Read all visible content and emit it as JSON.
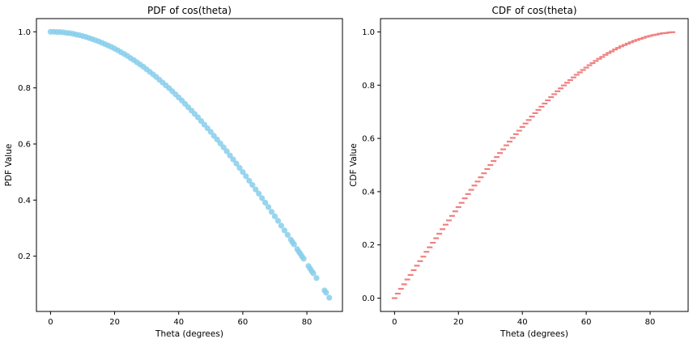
{
  "chart_data": [
    {
      "type": "scatter",
      "title": "PDF of cos(theta)",
      "xlabel": "Theta (degrees)",
      "ylabel": "PDF Value",
      "function": "cos(theta)",
      "xlim": [
        -4.4,
        91.1
      ],
      "ylim": [
        0.003,
        1.047
      ],
      "xticks": [
        0,
        20,
        40,
        60,
        80
      ],
      "yticks": [
        0.2,
        0.4,
        0.6,
        0.8,
        1.0
      ],
      "xtick_labels": [
        "0",
        "20",
        "40",
        "60",
        "80"
      ],
      "ytick_labels": [
        "0.2",
        "0.4",
        "0.6",
        "0.8",
        "1.0"
      ],
      "marker": "circle",
      "color": "#87CEEB",
      "grid": false,
      "points": [
        [
          0.0,
          1.0
        ],
        [
          1.0,
          1.0
        ],
        [
          2.0,
          0.999
        ],
        [
          3.0,
          0.999
        ],
        [
          4.0,
          0.998
        ],
        [
          5.0,
          0.996
        ],
        [
          6.0,
          0.995
        ],
        [
          7.0,
          0.993
        ],
        [
          8.0,
          0.99
        ],
        [
          9.0,
          0.988
        ],
        [
          10.0,
          0.985
        ],
        [
          11.0,
          0.982
        ],
        [
          12.0,
          0.978
        ],
        [
          13.0,
          0.974
        ],
        [
          14.0,
          0.97
        ],
        [
          15.0,
          0.966
        ],
        [
          16.0,
          0.961
        ],
        [
          17.0,
          0.956
        ],
        [
          18.0,
          0.951
        ],
        [
          19.0,
          0.946
        ],
        [
          20.0,
          0.94
        ],
        [
          21.0,
          0.934
        ],
        [
          22.0,
          0.927
        ],
        [
          23.0,
          0.921
        ],
        [
          24.0,
          0.914
        ],
        [
          25.0,
          0.906
        ],
        [
          26.0,
          0.899
        ],
        [
          27.0,
          0.891
        ],
        [
          28.0,
          0.883
        ],
        [
          29.0,
          0.875
        ],
        [
          30.0,
          0.866
        ],
        [
          31.0,
          0.857
        ],
        [
          32.0,
          0.848
        ],
        [
          33.0,
          0.839
        ],
        [
          34.0,
          0.829
        ],
        [
          35.0,
          0.819
        ],
        [
          36.0,
          0.809
        ],
        [
          37.0,
          0.799
        ],
        [
          38.0,
          0.788
        ],
        [
          39.0,
          0.777
        ],
        [
          40.0,
          0.766
        ],
        [
          41.0,
          0.755
        ],
        [
          42.0,
          0.743
        ],
        [
          43.0,
          0.731
        ],
        [
          44.0,
          0.719
        ],
        [
          45.0,
          0.707
        ],
        [
          46.0,
          0.695
        ],
        [
          47.0,
          0.682
        ],
        [
          48.0,
          0.669
        ],
        [
          49.0,
          0.656
        ],
        [
          50.0,
          0.643
        ],
        [
          51.0,
          0.629
        ],
        [
          52.0,
          0.616
        ],
        [
          53.0,
          0.602
        ],
        [
          54.0,
          0.588
        ],
        [
          55.0,
          0.574
        ],
        [
          56.0,
          0.559
        ],
        [
          57.0,
          0.545
        ],
        [
          58.0,
          0.53
        ],
        [
          59.0,
          0.515
        ],
        [
          60.0,
          0.5
        ],
        [
          61.0,
          0.485
        ],
        [
          62.0,
          0.469
        ],
        [
          63.0,
          0.454
        ],
        [
          64.0,
          0.438
        ],
        [
          65.0,
          0.423
        ],
        [
          66.0,
          0.407
        ],
        [
          67.0,
          0.391
        ],
        [
          68.0,
          0.375
        ],
        [
          69.0,
          0.358
        ],
        [
          70.0,
          0.342
        ],
        [
          71.0,
          0.326
        ],
        [
          72.0,
          0.309
        ],
        [
          73.0,
          0.292
        ],
        [
          74.0,
          0.276
        ],
        [
          75.0,
          0.259
        ],
        [
          75.5,
          0.25
        ],
        [
          76.0,
          0.242
        ],
        [
          77.0,
          0.225
        ],
        [
          77.5,
          0.216
        ],
        [
          78.0,
          0.208
        ],
        [
          78.5,
          0.199
        ],
        [
          79.0,
          0.191
        ],
        [
          80.5,
          0.165
        ],
        [
          81.0,
          0.156
        ],
        [
          81.5,
          0.147
        ],
        [
          82.0,
          0.139
        ],
        [
          83.0,
          0.122
        ],
        [
          85.5,
          0.078
        ],
        [
          86.0,
          0.07
        ],
        [
          87.0,
          0.052
        ]
      ]
    },
    {
      "type": "scatter",
      "title": "CDF of cos(theta)",
      "xlabel": "Theta (degrees)",
      "ylabel": "CDF Value",
      "function": "sin(theta)",
      "xlim": [
        -4.4,
        91.9
      ],
      "ylim": [
        -0.05,
        1.05
      ],
      "xticks": [
        0,
        20,
        40,
        60,
        80
      ],
      "yticks": [
        0.0,
        0.2,
        0.4,
        0.6,
        0.8,
        1.0
      ],
      "xtick_labels": [
        "0",
        "20",
        "40",
        "60",
        "80"
      ],
      "ytick_labels": [
        "0.0",
        "0.2",
        "0.4",
        "0.6",
        "0.8",
        "1.0"
      ],
      "marker": "dash",
      "color": "#F08080",
      "grid": false,
      "points": [
        [
          0.0,
          0.0
        ],
        [
          1.0,
          0.017
        ],
        [
          2.0,
          0.035
        ],
        [
          3.0,
          0.052
        ],
        [
          4.0,
          0.07
        ],
        [
          5.0,
          0.087
        ],
        [
          6.0,
          0.105
        ],
        [
          7.0,
          0.122
        ],
        [
          8.0,
          0.139
        ],
        [
          9.0,
          0.156
        ],
        [
          10.0,
          0.174
        ],
        [
          11.0,
          0.191
        ],
        [
          12.0,
          0.208
        ],
        [
          13.0,
          0.225
        ],
        [
          14.0,
          0.242
        ],
        [
          15.0,
          0.259
        ],
        [
          16.0,
          0.276
        ],
        [
          17.0,
          0.292
        ],
        [
          18.0,
          0.309
        ],
        [
          19.0,
          0.326
        ],
        [
          20.0,
          0.342
        ],
        [
          21.0,
          0.358
        ],
        [
          22.0,
          0.375
        ],
        [
          23.0,
          0.391
        ],
        [
          24.0,
          0.407
        ],
        [
          25.0,
          0.423
        ],
        [
          26.0,
          0.438
        ],
        [
          27.0,
          0.454
        ],
        [
          28.0,
          0.469
        ],
        [
          29.0,
          0.485
        ],
        [
          30.0,
          0.5
        ],
        [
          31.0,
          0.515
        ],
        [
          32.0,
          0.53
        ],
        [
          33.0,
          0.545
        ],
        [
          34.0,
          0.559
        ],
        [
          35.0,
          0.574
        ],
        [
          36.0,
          0.588
        ],
        [
          37.0,
          0.602
        ],
        [
          38.0,
          0.616
        ],
        [
          39.0,
          0.629
        ],
        [
          40.0,
          0.643
        ],
        [
          41.0,
          0.656
        ],
        [
          42.0,
          0.669
        ],
        [
          43.0,
          0.682
        ],
        [
          44.0,
          0.695
        ],
        [
          45.0,
          0.707
        ],
        [
          46.0,
          0.719
        ],
        [
          47.0,
          0.731
        ],
        [
          48.0,
          0.743
        ],
        [
          49.0,
          0.755
        ],
        [
          50.0,
          0.766
        ],
        [
          51.0,
          0.777
        ],
        [
          52.0,
          0.788
        ],
        [
          53.0,
          0.799
        ],
        [
          54.0,
          0.809
        ],
        [
          55.0,
          0.819
        ],
        [
          56.0,
          0.829
        ],
        [
          57.0,
          0.839
        ],
        [
          58.0,
          0.848
        ],
        [
          59.0,
          0.857
        ],
        [
          60.0,
          0.866
        ],
        [
          61.0,
          0.875
        ],
        [
          62.0,
          0.883
        ],
        [
          63.0,
          0.891
        ],
        [
          64.0,
          0.899
        ],
        [
          65.0,
          0.906
        ],
        [
          66.0,
          0.914
        ],
        [
          67.0,
          0.921
        ],
        [
          68.0,
          0.927
        ],
        [
          69.0,
          0.934
        ],
        [
          70.0,
          0.94
        ],
        [
          71.0,
          0.946
        ],
        [
          72.0,
          0.951
        ],
        [
          73.0,
          0.956
        ],
        [
          74.0,
          0.961
        ],
        [
          75.0,
          0.966
        ],
        [
          76.0,
          0.97
        ],
        [
          77.0,
          0.974
        ],
        [
          78.0,
          0.978
        ],
        [
          79.0,
          0.982
        ],
        [
          80.0,
          0.985
        ],
        [
          81.0,
          0.988
        ],
        [
          82.0,
          0.99
        ],
        [
          83.0,
          0.993
        ],
        [
          84.0,
          0.995
        ],
        [
          85.0,
          0.996
        ],
        [
          86.0,
          0.998
        ],
        [
          87.0,
          0.999
        ]
      ]
    }
  ]
}
